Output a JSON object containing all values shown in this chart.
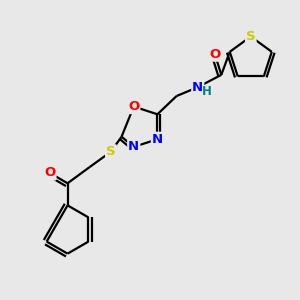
{
  "bg_color": "#e8e8e8",
  "atom_colors": {
    "O": "#ff0000",
    "N": "#0000ff",
    "S": "#cccc00",
    "H": "#008080",
    "C": "#000000"
  },
  "line_width": 1.6,
  "font_size": 9.5,
  "figsize": [
    3.0,
    3.0
  ],
  "dpi": 100
}
